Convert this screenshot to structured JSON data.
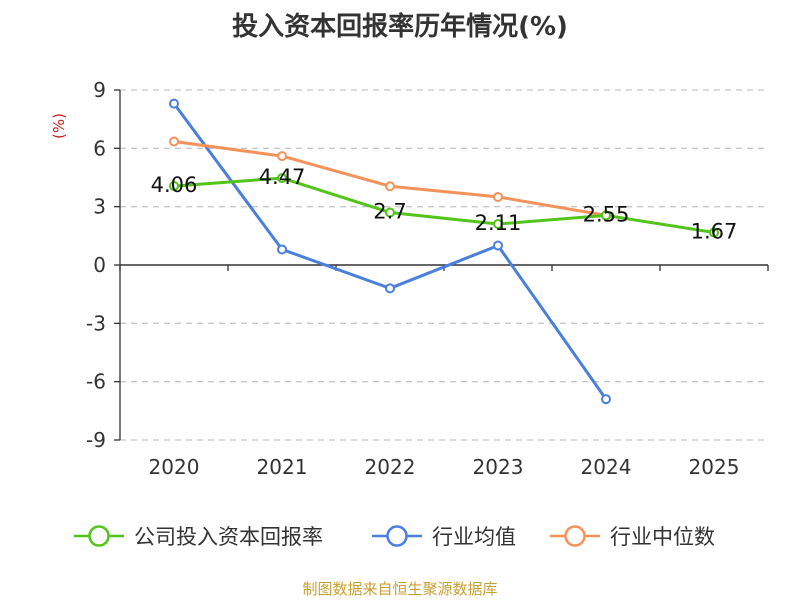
{
  "chart_data": {
    "type": "line",
    "title": "投入资本回报率历年情况(%)",
    "ylabel": "(%)",
    "xlabel": "",
    "categories": [
      "2020",
      "2021",
      "2022",
      "2023",
      "2024",
      "2025"
    ],
    "yticks": [
      "9",
      "6",
      "3",
      "0",
      "-3",
      "-6",
      "-9"
    ],
    "ylim": [
      -9,
      9
    ],
    "grid": true,
    "legend_position": "bottom",
    "series": [
      {
        "name": "公司投入资本回报率",
        "color": "#52c41a",
        "values": [
          4.06,
          4.47,
          2.7,
          2.11,
          2.55,
          1.67
        ],
        "data_labels": [
          "4.06",
          "4.47",
          "2.7",
          "2.11",
          "2.55",
          "1.67"
        ]
      },
      {
        "name": "行业均值",
        "color": "#4a7fdb",
        "values": [
          8.3,
          0.8,
          -1.2,
          1.0,
          -6.9,
          null
        ]
      },
      {
        "name": "行业中位数",
        "color": "#f5925a",
        "values": [
          6.35,
          5.6,
          4.05,
          3.5,
          2.55,
          null
        ]
      }
    ]
  },
  "source_note": "制图数据来自恒生聚源数据库",
  "colors": {
    "source_note": "#c8a032",
    "ylabel": "#cc2222",
    "grid": "#c8c8c8",
    "axis": "#333333"
  }
}
